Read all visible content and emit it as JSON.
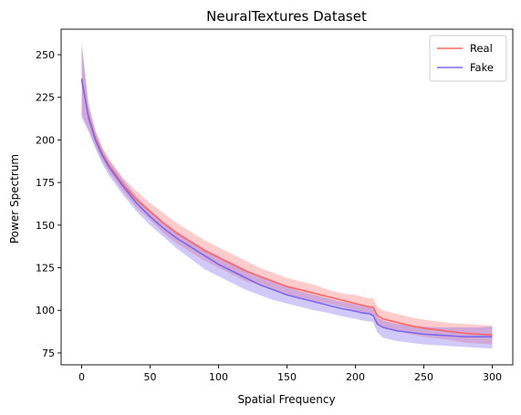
{
  "chart_data": {
    "type": "line",
    "title": "NeuralTextures Dataset",
    "xlabel": "Spatial Frequency",
    "ylabel": "Power Spectrum",
    "xlim": [
      -15,
      315
    ],
    "ylim": [
      68,
      265
    ],
    "xticks": [
      0,
      50,
      100,
      150,
      200,
      250,
      300
    ],
    "yticks": [
      75,
      100,
      125,
      150,
      175,
      200,
      225,
      250
    ],
    "grid": false,
    "legend_position": "top-right",
    "x": [
      0,
      5,
      10,
      15,
      20,
      30,
      40,
      50,
      60,
      70,
      80,
      90,
      100,
      110,
      120,
      130,
      140,
      150,
      160,
      170,
      180,
      190,
      200,
      205,
      210,
      213,
      216,
      220,
      225,
      230,
      240,
      250,
      260,
      270,
      280,
      290,
      300
    ],
    "series": [
      {
        "name": "Real",
        "color": "#ff6666",
        "band_color": "#ff9999",
        "band_opacity": 0.5,
        "mean": [
          235,
          214,
          201,
          192,
          185,
          174,
          165,
          158,
          151,
          145,
          140,
          135,
          131,
          127,
          123,
          120,
          117,
          114,
          112,
          110,
          108,
          106,
          104,
          103,
          102,
          102,
          97,
          95,
          94,
          93,
          91,
          89.5,
          88.5,
          87.5,
          86.5,
          86,
          85.5
        ],
        "upper": [
          255,
          222,
          206,
          196,
          189,
          178,
          170,
          163,
          157,
          151,
          146,
          141,
          137,
          133,
          129,
          125,
          122,
          119,
          117,
          115,
          112,
          110,
          109,
          108,
          107,
          107,
          102,
          100,
          99,
          98,
          96,
          94.5,
          93.5,
          92.5,
          92,
          91.5,
          91
        ],
        "lower": [
          215,
          206,
          196,
          188,
          181,
          170,
          160,
          153,
          145,
          139,
          134,
          129,
          125,
          121,
          117,
          115,
          112,
          109,
          107,
          105,
          104,
          102,
          100,
          99,
          98,
          98,
          92,
          90,
          89,
          88,
          86,
          84.5,
          83.5,
          82.5,
          81,
          80.5,
          80
        ]
      },
      {
        "name": "Fake",
        "color": "#7b68ee",
        "band_color": "#7b68ee",
        "band_opacity": 0.35,
        "mean": [
          236,
          213,
          200,
          191,
          184,
          173,
          163,
          155,
          148,
          142,
          137,
          132,
          127,
          123,
          119,
          115,
          112,
          109,
          107,
          105,
          103,
          101,
          99.5,
          98.5,
          98,
          97,
          92,
          90,
          89,
          88,
          87,
          86,
          85.5,
          85,
          84.5,
          84.5,
          84.5
        ],
        "upper": [
          258,
          220,
          205,
          195,
          188,
          177,
          167,
          159,
          152,
          146,
          141,
          136,
          132,
          128,
          124,
          120,
          117,
          114,
          111,
          109,
          107,
          105,
          103.5,
          102.5,
          102,
          101.5,
          96,
          94,
          93,
          92,
          91,
          90.5,
          90,
          90,
          90,
          90,
          90.5
        ],
        "lower": [
          213,
          205,
          195,
          186,
          179,
          168,
          158,
          150,
          143,
          136,
          130,
          124,
          120,
          116,
          112,
          109,
          106,
          104,
          102,
          100,
          98.5,
          96.5,
          95,
          94,
          93.5,
          93,
          87,
          84,
          83,
          82,
          81,
          80,
          79.5,
          79,
          78.5,
          78,
          77.5
        ]
      }
    ]
  }
}
